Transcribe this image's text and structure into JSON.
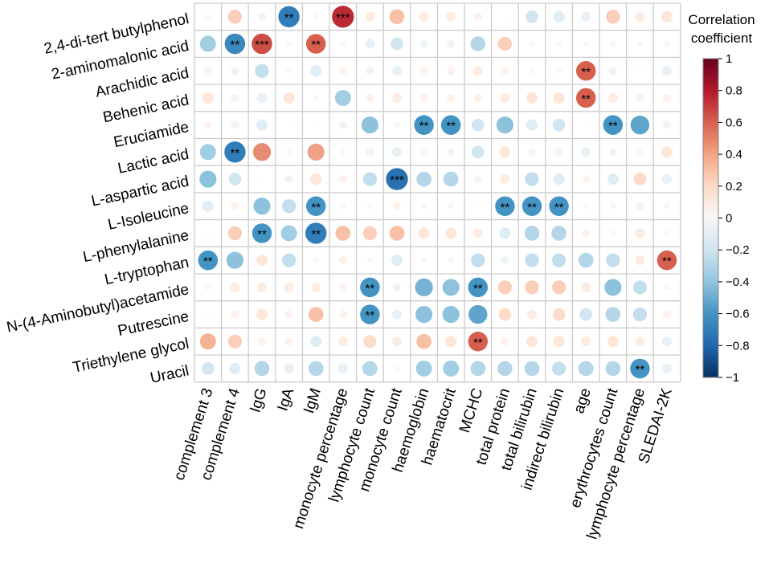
{
  "chart_data": {
    "type": "heatmap",
    "subtype": "correlation-circle-matrix",
    "rows": [
      "2,4-di-tert butylphenol",
      "2-aminomalonic acid",
      "Arachidic acid",
      "Behenic acid",
      "Eruciamide",
      "Lactic acid",
      "L-aspartic acid",
      "L-Isoleucine",
      "L-phenylalanine",
      "L-tryptophan",
      "N-(4-Aminobutyl)acetamide",
      "Putrescine",
      "Triethylene glycol",
      "Uracil"
    ],
    "columns": [
      "complement 3",
      "complement 4",
      "IgG",
      "IgA",
      "IgM",
      "monocyte percentage",
      "lymphocyte count",
      "monocyte count",
      "haemoglobin",
      "haematocrit",
      "MCHC",
      "total protein",
      "total bilirubin",
      "indirect bilirubin",
      "age",
      "erythrocytes count",
      "lymphocyte percentage",
      "SLEDAI-2K"
    ],
    "values": [
      [
        -0.05,
        0.3,
        -0.1,
        -0.7,
        -0.05,
        0.75,
        0.15,
        0.35,
        0.15,
        0.15,
        0.1,
        0.0,
        -0.25,
        -0.2,
        -0.15,
        0.3,
        0.15,
        0.2
      ],
      [
        -0.4,
        -0.65,
        0.65,
        0.05,
        0.6,
        0.05,
        -0.15,
        -0.25,
        -0.1,
        -0.1,
        -0.35,
        0.3,
        -0.05,
        -0.05,
        -0.05,
        -0.05,
        -0.05,
        -0.05
      ],
      [
        0.1,
        -0.1,
        -0.3,
        -0.05,
        -0.2,
        0.1,
        -0.1,
        -0.15,
        0.1,
        0.1,
        0.15,
        0.1,
        0.05,
        0.05,
        0.6,
        -0.1,
        0.0,
        -0.15
      ],
      [
        0.2,
        -0.1,
        -0.15,
        0.2,
        -0.05,
        -0.4,
        0.1,
        0.15,
        0.1,
        0.1,
        0.1,
        0.15,
        0.2,
        0.2,
        0.6,
        0.15,
        0.1,
        0.1
      ],
      [
        0.1,
        -0.1,
        -0.2,
        0.0,
        0.0,
        -0.1,
        -0.45,
        -0.05,
        -0.6,
        -0.6,
        -0.25,
        -0.45,
        -0.2,
        -0.25,
        0.0,
        -0.6,
        -0.55,
        -0.1
      ],
      [
        -0.4,
        -0.7,
        0.5,
        -0.05,
        0.45,
        0.05,
        -0.1,
        -0.15,
        -0.1,
        -0.1,
        -0.25,
        0.2,
        0.1,
        0.1,
        -0.15,
        -0.1,
        -0.05,
        0.2
      ],
      [
        -0.45,
        -0.25,
        0.0,
        -0.1,
        0.2,
        0.1,
        -0.3,
        -0.75,
        -0.35,
        -0.35,
        -0.1,
        0.15,
        -0.3,
        -0.2,
        0.1,
        -0.2,
        0.25,
        -0.15
      ],
      [
        -0.2,
        0.1,
        -0.45,
        -0.3,
        -0.6,
        0.05,
        0.05,
        0.1,
        0.05,
        0.05,
        0.0,
        -0.6,
        -0.6,
        -0.6,
        -0.05,
        0.05,
        -0.1,
        -0.05
      ],
      [
        0.0,
        0.3,
        -0.6,
        -0.4,
        -0.7,
        0.35,
        0.3,
        0.35,
        0.2,
        0.2,
        0.15,
        -0.2,
        -0.35,
        -0.35,
        0.1,
        0.05,
        0.15,
        0.05
      ],
      [
        -0.6,
        -0.45,
        0.2,
        -0.3,
        -0.05,
        0.1,
        0.05,
        -0.2,
        -0.05,
        -0.05,
        -0.3,
        -0.1,
        -0.3,
        -0.3,
        -0.35,
        -0.3,
        0.15,
        0.6
      ],
      [
        0.05,
        0.15,
        0.15,
        0.15,
        0.15,
        0.1,
        -0.6,
        -0.1,
        -0.5,
        -0.45,
        -0.6,
        0.3,
        0.3,
        0.3,
        0.15,
        -0.45,
        -0.3,
        0.05
      ],
      [
        0.0,
        0.1,
        0.2,
        0.1,
        0.35,
        0.1,
        -0.6,
        -0.15,
        -0.45,
        -0.45,
        -0.55,
        0.25,
        0.15,
        0.25,
        -0.25,
        -0.35,
        -0.3,
        0.1
      ],
      [
        0.4,
        0.3,
        0.1,
        0.1,
        -0.2,
        0.15,
        0.25,
        0.15,
        0.35,
        0.2,
        0.6,
        0.1,
        0.2,
        0.2,
        0.15,
        0.2,
        0.15,
        -0.15
      ],
      [
        -0.25,
        -0.2,
        -0.35,
        -0.15,
        -0.35,
        -0.15,
        -0.35,
        0.05,
        -0.4,
        -0.4,
        -0.35,
        -0.35,
        -0.35,
        -0.3,
        -0.35,
        -0.35,
        -0.6,
        -0.15
      ]
    ],
    "significance": [
      [
        "",
        "",
        "",
        "**",
        "",
        "***",
        "",
        "",
        "",
        "",
        "",
        "",
        "",
        "",
        "",
        "",
        "",
        ""
      ],
      [
        "",
        "**",
        "***",
        "",
        "**",
        "",
        "",
        "",
        "",
        "",
        "",
        "",
        "",
        "",
        "",
        "",
        "",
        ""
      ],
      [
        "",
        "",
        "",
        "",
        "",
        "",
        "",
        "",
        "",
        "",
        "",
        "",
        "",
        "",
        "**",
        "",
        "",
        ""
      ],
      [
        "",
        "",
        "",
        "",
        "",
        "",
        "",
        "",
        "",
        "",
        "",
        "",
        "",
        "",
        "**",
        "",
        "",
        ""
      ],
      [
        "",
        "",
        "",
        "",
        "",
        "",
        "",
        "",
        "**",
        "**",
        "",
        "",
        "",
        "",
        "",
        "**",
        "",
        ""
      ],
      [
        "",
        "**",
        "",
        "",
        "",
        "",
        "",
        "",
        "",
        "",
        "",
        "",
        "",
        "",
        "",
        "",
        "",
        ""
      ],
      [
        "",
        "",
        "",
        "",
        "",
        "",
        "",
        "***",
        "",
        "",
        "",
        "",
        "",
        "",
        "",
        "",
        "",
        ""
      ],
      [
        "",
        "",
        "",
        "",
        "**",
        "",
        "",
        "",
        "",
        "",
        "",
        "**",
        "**",
        "**",
        "",
        "",
        "",
        ""
      ],
      [
        "",
        "",
        "**",
        "",
        "**",
        "",
        "",
        "",
        "",
        "",
        "",
        "",
        "",
        "",
        "",
        "",
        "",
        ""
      ],
      [
        "**",
        "",
        "",
        "",
        "",
        "",
        "",
        "",
        "",
        "",
        "",
        "",
        "",
        "",
        "",
        "",
        "",
        "**"
      ],
      [
        "",
        "",
        "",
        "",
        "",
        "",
        "**",
        "",
        "",
        "",
        "**",
        "",
        "",
        "",
        "",
        "",
        "",
        ""
      ],
      [
        "",
        "",
        "",
        "",
        "",
        "",
        "**",
        "",
        "",
        "",
        "",
        "",
        "",
        "",
        "",
        "",
        "",
        ""
      ],
      [
        "",
        "",
        "",
        "",
        "",
        "",
        "",
        "",
        "",
        "",
        "**",
        "",
        "",
        "",
        "",
        "",
        "",
        ""
      ],
      [
        "",
        "",
        "",
        "",
        "",
        "",
        "",
        "",
        "",
        "",
        "",
        "",
        "",
        "",
        "",
        "",
        "**",
        ""
      ]
    ],
    "legend": {
      "title_line1": "Correlation",
      "title_line2": "coefficient",
      "ticks": [
        "1",
        "0.8",
        "0.6",
        "0.4",
        "0.2",
        "0",
        "−0.2",
        "−0.4",
        "−0.6",
        "−0.8",
        "−1"
      ],
      "range": [
        -1,
        1
      ]
    },
    "colors": {
      "negative_max": "#053061",
      "negative_mid": "#4393c3",
      "neutral": "#f7f7f7",
      "positive_mid": "#f4a582",
      "positive_max": "#67001f",
      "grid": "#cccccc"
    }
  }
}
